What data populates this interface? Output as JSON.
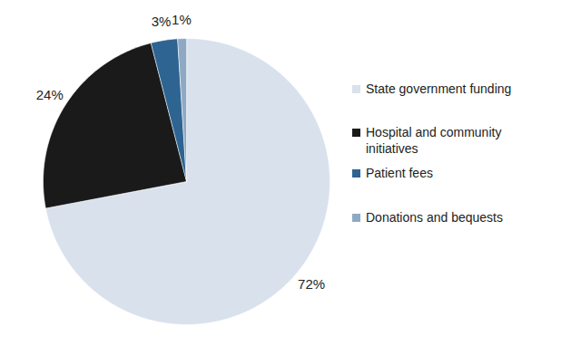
{
  "chart_data": {
    "type": "pie",
    "categories": [
      "State government funding",
      "Hospital and community initiatives",
      "Patient fees",
      "Donations and bequests"
    ],
    "values": [
      72,
      24,
      3,
      1
    ],
    "value_labels": [
      "72%",
      "24%",
      "3%",
      "1%"
    ],
    "colors": [
      "#d9e1ec",
      "#1a1a1a",
      "#2e6491",
      "#8fa9c4"
    ],
    "data_labels": true,
    "legend": "right"
  }
}
